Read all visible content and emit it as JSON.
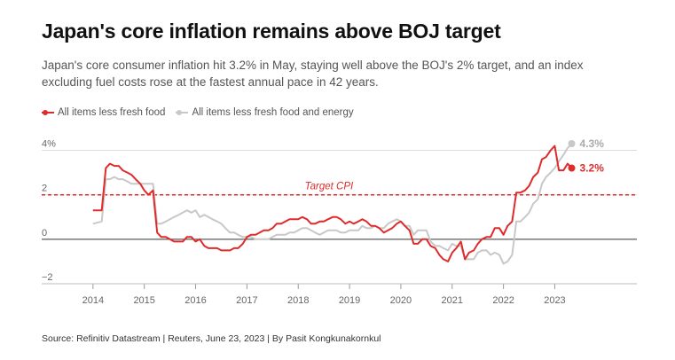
{
  "title": "Japan's core inflation remains above BOJ target",
  "subtitle": "Japan's core consumer inflation hit 3.2% in May, staying well above the BOJ's 2% target, and an index excluding fuel costs rose at the fastest annual pace in 42 years.",
  "source": "Source: Refinitiv Datastream | Reuters, June 23, 2023 | By Pasit Kongkunakornkul",
  "colors": {
    "core": "#e02b2b",
    "core_ex_energy": "#c8c8c8",
    "target": "#e02b2b",
    "zero_line": "#333333",
    "grid": "#dddddd"
  },
  "chart_data": {
    "type": "line",
    "x_unit": "year",
    "xlim": [
      2013.0,
      2024.6
    ],
    "ylim": [
      -2,
      4.5
    ],
    "x_ticks": [
      2014,
      2015,
      2016,
      2017,
      2018,
      2019,
      2020,
      2021,
      2022,
      2023
    ],
    "x_tick_labels": [
      "2014",
      "2015",
      "2016",
      "2017",
      "2018",
      "2019",
      "2020",
      "2021",
      "2022",
      "2023"
    ],
    "y_ticks": [
      -2,
      0,
      2,
      4
    ],
    "y_tick_labels": [
      "−2",
      "0",
      "2",
      "4%"
    ],
    "grid": "horizontal",
    "legend_position": "top-left",
    "target": {
      "value": 2,
      "label": "Target CPI"
    },
    "series": [
      {
        "name": "All items less fresh food",
        "color": "#e02b2b",
        "end_label": "3.2%",
        "points": [
          [
            2014.0,
            1.3
          ],
          [
            2014.17,
            1.3
          ],
          [
            2014.25,
            3.2
          ],
          [
            2014.33,
            3.4
          ],
          [
            2014.42,
            3.3
          ],
          [
            2014.5,
            3.3
          ],
          [
            2014.58,
            3.1
          ],
          [
            2014.67,
            3.0
          ],
          [
            2014.75,
            2.9
          ],
          [
            2014.83,
            2.7
          ],
          [
            2014.92,
            2.5
          ],
          [
            2015.0,
            2.2
          ],
          [
            2015.08,
            2.0
          ],
          [
            2015.17,
            2.2
          ],
          [
            2015.25,
            0.3
          ],
          [
            2015.33,
            0.1
          ],
          [
            2015.42,
            0.1
          ],
          [
            2015.5,
            0.0
          ],
          [
            2015.58,
            -0.1
          ],
          [
            2015.67,
            -0.1
          ],
          [
            2015.75,
            -0.1
          ],
          [
            2015.83,
            0.1
          ],
          [
            2015.92,
            0.1
          ],
          [
            2016.0,
            -0.1
          ],
          [
            2016.08,
            0.0
          ],
          [
            2016.17,
            -0.3
          ],
          [
            2016.25,
            -0.4
          ],
          [
            2016.33,
            -0.4
          ],
          [
            2016.42,
            -0.4
          ],
          [
            2016.5,
            -0.5
          ],
          [
            2016.58,
            -0.5
          ],
          [
            2016.67,
            -0.5
          ],
          [
            2016.75,
            -0.4
          ],
          [
            2016.83,
            -0.4
          ],
          [
            2016.92,
            -0.2
          ],
          [
            2017.0,
            0.1
          ],
          [
            2017.08,
            0.2
          ],
          [
            2017.17,
            0.2
          ],
          [
            2017.25,
            0.3
          ],
          [
            2017.33,
            0.4
          ],
          [
            2017.42,
            0.4
          ],
          [
            2017.5,
            0.5
          ],
          [
            2017.58,
            0.7
          ],
          [
            2017.67,
            0.7
          ],
          [
            2017.75,
            0.8
          ],
          [
            2017.83,
            0.9
          ],
          [
            2017.92,
            0.9
          ],
          [
            2018.0,
            0.9
          ],
          [
            2018.08,
            1.0
          ],
          [
            2018.17,
            0.9
          ],
          [
            2018.25,
            0.7
          ],
          [
            2018.33,
            0.7
          ],
          [
            2018.42,
            0.8
          ],
          [
            2018.5,
            0.8
          ],
          [
            2018.58,
            0.9
          ],
          [
            2018.67,
            1.0
          ],
          [
            2018.75,
            1.0
          ],
          [
            2018.83,
            0.9
          ],
          [
            2018.92,
            0.7
          ],
          [
            2019.0,
            0.8
          ],
          [
            2019.08,
            0.7
          ],
          [
            2019.17,
            0.8
          ],
          [
            2019.25,
            0.9
          ],
          [
            2019.33,
            0.8
          ],
          [
            2019.42,
            0.6
          ],
          [
            2019.5,
            0.6
          ],
          [
            2019.58,
            0.5
          ],
          [
            2019.67,
            0.3
          ],
          [
            2019.75,
            0.4
          ],
          [
            2019.83,
            0.5
          ],
          [
            2019.92,
            0.7
          ],
          [
            2020.0,
            0.8
          ],
          [
            2020.08,
            0.6
          ],
          [
            2020.17,
            0.4
          ],
          [
            2020.25,
            -0.2
          ],
          [
            2020.33,
            -0.2
          ],
          [
            2020.42,
            0.0
          ],
          [
            2020.5,
            0.0
          ],
          [
            2020.58,
            -0.3
          ],
          [
            2020.67,
            -0.4
          ],
          [
            2020.75,
            -0.7
          ],
          [
            2020.83,
            -0.9
          ],
          [
            2020.92,
            -1.0
          ],
          [
            2021.0,
            -0.6
          ],
          [
            2021.08,
            -0.4
          ],
          [
            2021.17,
            -0.1
          ],
          [
            2021.25,
            -0.9
          ],
          [
            2021.33,
            -0.6
          ],
          [
            2021.42,
            -0.5
          ],
          [
            2021.5,
            -0.2
          ],
          [
            2021.58,
            0.0
          ],
          [
            2021.67,
            0.1
          ],
          [
            2021.75,
            0.1
          ],
          [
            2021.83,
            0.5
          ],
          [
            2021.92,
            0.5
          ],
          [
            2022.0,
            0.2
          ],
          [
            2022.08,
            0.6
          ],
          [
            2022.17,
            0.8
          ],
          [
            2022.25,
            2.1
          ],
          [
            2022.33,
            2.1
          ],
          [
            2022.42,
            2.2
          ],
          [
            2022.5,
            2.4
          ],
          [
            2022.58,
            2.8
          ],
          [
            2022.67,
            3.0
          ],
          [
            2022.75,
            3.6
          ],
          [
            2022.83,
            3.7
          ],
          [
            2022.92,
            4.0
          ],
          [
            2023.0,
            4.2
          ],
          [
            2023.08,
            3.1
          ],
          [
            2023.17,
            3.1
          ],
          [
            2023.25,
            3.4
          ],
          [
            2023.33,
            3.2
          ]
        ]
      },
      {
        "name": "All items less fresh food and energy",
        "color": "#c8c8c8",
        "end_label": "4.3%",
        "points": [
          [
            2014.0,
            0.7
          ],
          [
            2014.17,
            0.8
          ],
          [
            2014.25,
            2.7
          ],
          [
            2014.33,
            2.7
          ],
          [
            2014.42,
            2.8
          ],
          [
            2014.5,
            2.7
          ],
          [
            2014.58,
            2.7
          ],
          [
            2014.67,
            2.6
          ],
          [
            2014.75,
            2.5
          ],
          [
            2014.83,
            2.5
          ],
          [
            2014.92,
            2.5
          ],
          [
            2015.0,
            2.5
          ],
          [
            2015.08,
            2.5
          ],
          [
            2015.17,
            2.5
          ],
          [
            2015.25,
            0.7
          ],
          [
            2015.33,
            0.7
          ],
          [
            2015.42,
            0.8
          ],
          [
            2015.5,
            0.9
          ],
          [
            2015.58,
            1.0
          ],
          [
            2015.67,
            1.1
          ],
          [
            2015.75,
            1.2
          ],
          [
            2015.83,
            1.3
          ],
          [
            2015.92,
            1.2
          ],
          [
            2016.0,
            1.3
          ],
          [
            2016.08,
            1.0
          ],
          [
            2016.17,
            1.1
          ],
          [
            2016.25,
            1.0
          ],
          [
            2016.33,
            0.9
          ],
          [
            2016.42,
            0.8
          ],
          [
            2016.5,
            0.7
          ],
          [
            2016.58,
            0.5
          ],
          [
            2016.67,
            0.3
          ],
          [
            2016.75,
            0.3
          ],
          [
            2016.83,
            0.2
          ],
          [
            2016.92,
            0.1
          ],
          [
            2017.0,
            0.1
          ],
          [
            2017.08,
            0.1
          ],
          [
            2017.17,
            0.0
          ],
          [
            2017.25,
            0.0
          ],
          [
            2017.33,
            0.0
          ],
          [
            2017.42,
            0.0
          ],
          [
            2017.5,
            0.1
          ],
          [
            2017.58,
            0.2
          ],
          [
            2017.67,
            0.2
          ],
          [
            2017.75,
            0.2
          ],
          [
            2017.83,
            0.3
          ],
          [
            2017.92,
            0.3
          ],
          [
            2018.0,
            0.4
          ],
          [
            2018.08,
            0.5
          ],
          [
            2018.17,
            0.5
          ],
          [
            2018.25,
            0.4
          ],
          [
            2018.33,
            0.3
          ],
          [
            2018.42,
            0.2
          ],
          [
            2018.5,
            0.3
          ],
          [
            2018.58,
            0.4
          ],
          [
            2018.67,
            0.4
          ],
          [
            2018.75,
            0.4
          ],
          [
            2018.83,
            0.3
          ],
          [
            2018.92,
            0.3
          ],
          [
            2019.0,
            0.4
          ],
          [
            2019.08,
            0.4
          ],
          [
            2019.17,
            0.4
          ],
          [
            2019.25,
            0.6
          ],
          [
            2019.33,
            0.5
          ],
          [
            2019.42,
            0.5
          ],
          [
            2019.5,
            0.6
          ],
          [
            2019.58,
            0.5
          ],
          [
            2019.67,
            0.5
          ],
          [
            2019.75,
            0.7
          ],
          [
            2019.83,
            0.8
          ],
          [
            2019.92,
            0.9
          ],
          [
            2020.0,
            0.8
          ],
          [
            2020.08,
            0.6
          ],
          [
            2020.17,
            0.6
          ],
          [
            2020.25,
            0.2
          ],
          [
            2020.33,
            0.4
          ],
          [
            2020.42,
            0.4
          ],
          [
            2020.5,
            0.4
          ],
          [
            2020.58,
            -0.1
          ],
          [
            2020.67,
            -0.3
          ],
          [
            2020.75,
            -0.3
          ],
          [
            2020.83,
            -0.4
          ],
          [
            2020.92,
            -0.5
          ],
          [
            2021.0,
            -0.2
          ],
          [
            2021.08,
            -0.3
          ],
          [
            2021.17,
            -0.3
          ],
          [
            2021.25,
            -0.9
          ],
          [
            2021.33,
            -0.9
          ],
          [
            2021.42,
            -0.9
          ],
          [
            2021.5,
            -0.6
          ],
          [
            2021.58,
            -0.5
          ],
          [
            2021.67,
            -0.5
          ],
          [
            2021.75,
            -0.7
          ],
          [
            2021.83,
            -0.6
          ],
          [
            2021.92,
            -0.7
          ],
          [
            2022.0,
            -1.1
          ],
          [
            2022.08,
            -1.0
          ],
          [
            2022.17,
            -0.7
          ],
          [
            2022.25,
            0.8
          ],
          [
            2022.33,
            0.8
          ],
          [
            2022.42,
            1.0
          ],
          [
            2022.5,
            1.2
          ],
          [
            2022.58,
            1.6
          ],
          [
            2022.67,
            1.8
          ],
          [
            2022.75,
            2.5
          ],
          [
            2022.83,
            2.8
          ],
          [
            2022.92,
            3.0
          ],
          [
            2023.0,
            3.2
          ],
          [
            2023.08,
            3.5
          ],
          [
            2023.17,
            3.8
          ],
          [
            2023.25,
            4.1
          ],
          [
            2023.33,
            4.3
          ]
        ]
      }
    ]
  }
}
